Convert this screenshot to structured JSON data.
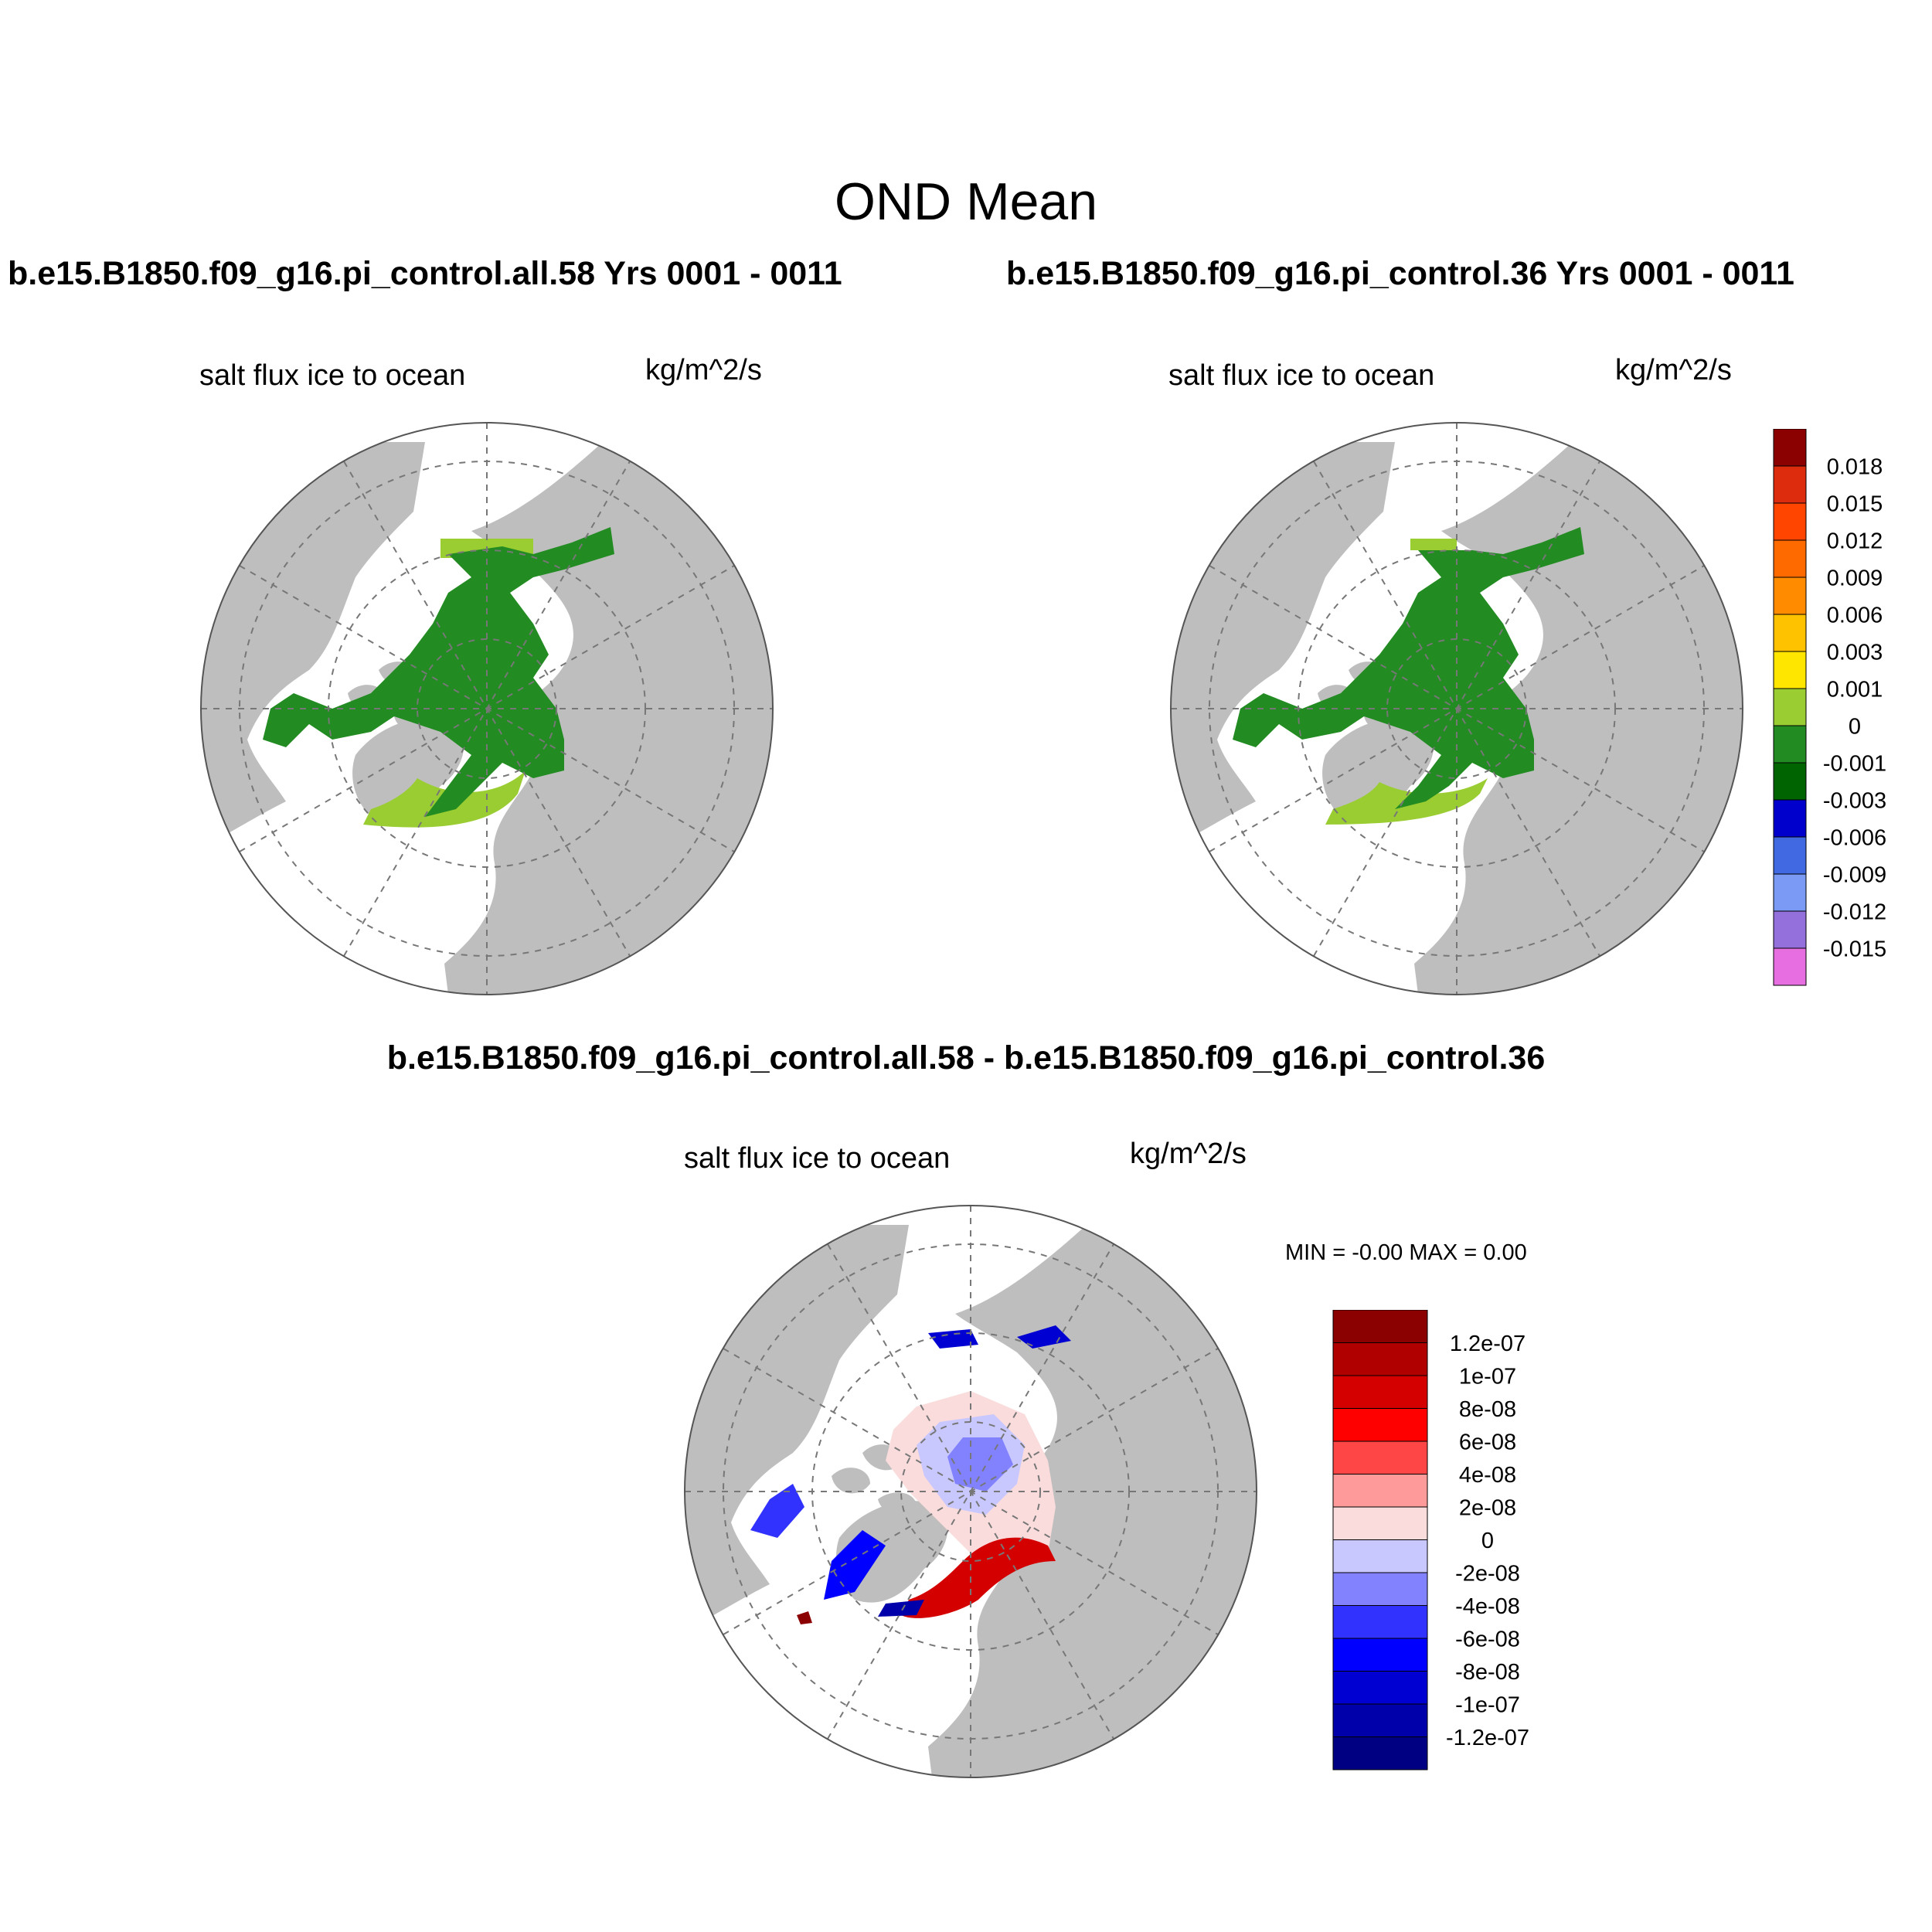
{
  "figure": {
    "title": "OND Mean",
    "panel_left_title": "b.e15.B1850.f09_g16.pi_control.all.58  Yrs 0001 - 0011",
    "panel_right_title": "b.e15.B1850.f09_g16.pi_control.36  Yrs 0001 - 0011",
    "diff_title": "b.e15.B1850.f09_g16.pi_control.all.58 - b.e15.B1850.f09_g16.pi_control.36"
  },
  "panels": [
    {
      "variable": "salt flux ice to ocean",
      "units": "kg/m^2/s"
    },
    {
      "variable": "salt flux ice to ocean",
      "units": "kg/m^2/s"
    },
    {
      "variable": "salt flux ice to ocean",
      "units": "kg/m^2/s",
      "minmax": "MIN =  -0.00 MAX =   0.00"
    }
  ],
  "colors": {
    "land": "#bebebe",
    "ocean": "#ffffff",
    "ice_main": "#228b22",
    "ice_edge": "#9acd32"
  },
  "colorbar_main": {
    "labels": [
      "0.018",
      "0.015",
      "0.012",
      "0.009",
      "0.006",
      "0.003",
      "0.001",
      "0",
      "-0.001",
      "-0.003",
      "-0.006",
      "-0.009",
      "-0.012",
      "-0.015"
    ],
    "colors": [
      "#8b0000",
      "#dd2b0e",
      "#ff4500",
      "#ff6a00",
      "#ff8c00",
      "#ffc200",
      "#ffe600",
      "#9acd32",
      "#228b22",
      "#006400",
      "#0000cd",
      "#4169e1",
      "#7a9af5",
      "#9370db",
      "#e66ee0"
    ]
  },
  "colorbar_diff": {
    "labels": [
      "1.2e-07",
      "1e-07",
      "8e-08",
      "6e-08",
      "4e-08",
      "2e-08",
      "0",
      "-2e-08",
      "-4e-08",
      "-6e-08",
      "-8e-08",
      "-1e-07",
      "-1.2e-07"
    ],
    "colors": [
      "#8b0000",
      "#b00000",
      "#d40000",
      "#ff0000",
      "#ff4646",
      "#ff9a9a",
      "#fadcdc",
      "#c8c8ff",
      "#8282ff",
      "#3232ff",
      "#0000ff",
      "#0000d2",
      "#0000aa",
      "#000082"
    ]
  }
}
